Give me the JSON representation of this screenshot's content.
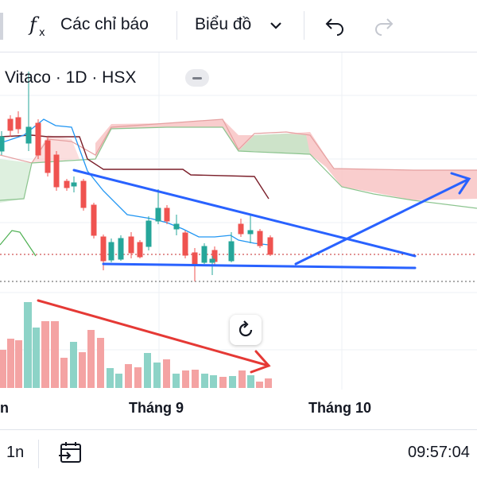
{
  "toolbar": {
    "indicators_label": "Các chỉ báo",
    "chart_type_label": "Biểu đồ",
    "icons": [
      "fx-icon",
      "chevron-down-icon",
      "undo-icon",
      "redo-icon"
    ]
  },
  "chart": {
    "symbol_label": "Vitaco · 1D · HSX",
    "time_axis": [
      "n",
      "Tháng 9",
      "Tháng 10"
    ],
    "colors": {
      "up": "#26a69a",
      "down": "#ef5350",
      "trendline": "#2962ff",
      "volume_arrow": "#e53935",
      "cloud_bear": "#f8c8c8",
      "cloud_bull": "#c8e6c9",
      "kijun": "#7b1f2a",
      "tenkan": "#2196f3"
    }
  },
  "bottom_bar": {
    "interval_label": "1n",
    "time": "09:57:04"
  }
}
